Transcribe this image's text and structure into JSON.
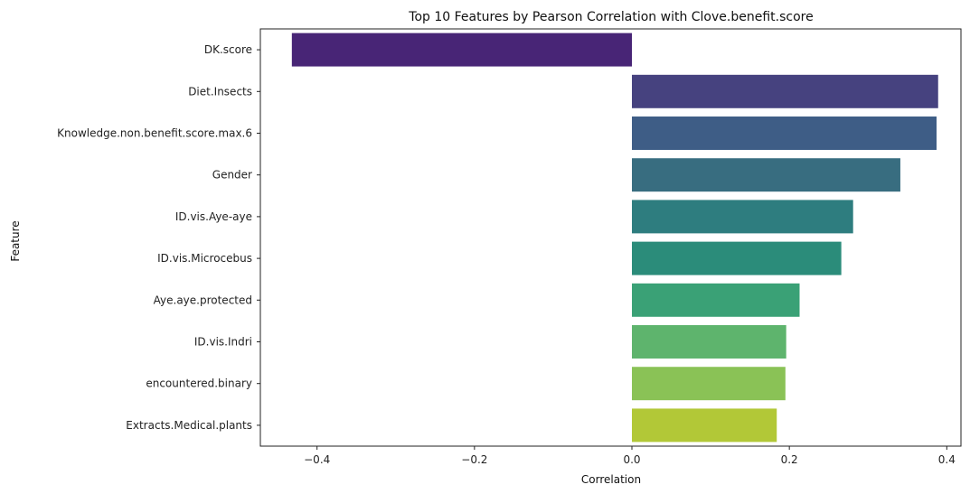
{
  "chart_data": {
    "type": "bar",
    "orientation": "horizontal",
    "title": "Top 10 Features by Pearson Correlation with Clove.benefit.score",
    "xlabel": "Correlation",
    "ylabel": "Feature",
    "categories": [
      "DK.score",
      "Diet.Insects",
      "Knowledge.non.benefit.score.max.6",
      "Gender",
      "ID.vis.Aye-aye",
      "ID.vis.Microcebus",
      "Aye.aye.protected",
      "ID.vis.Indri",
      "encountered.binary",
      "Extracts.Medical.plants"
    ],
    "values": [
      -0.432,
      0.389,
      0.387,
      0.341,
      0.281,
      0.266,
      0.213,
      0.196,
      0.195,
      0.184
    ],
    "colors": [
      "#482576",
      "#46427f",
      "#3e5d86",
      "#386d80",
      "#2e7d7f",
      "#2b8c7a",
      "#3aa176",
      "#5eb46d",
      "#8ac256",
      "#b2c837"
    ],
    "xlim": [
      -0.472,
      0.418
    ],
    "xticks": [
      {
        "value": -0.4,
        "label": "−0.4"
      },
      {
        "value": -0.2,
        "label": "−0.2"
      },
      {
        "value": 0.0,
        "label": "0.0"
      },
      {
        "value": 0.2,
        "label": "0.2"
      },
      {
        "value": 0.4,
        "label": "0.4"
      }
    ],
    "grid": false,
    "legend": "none"
  }
}
